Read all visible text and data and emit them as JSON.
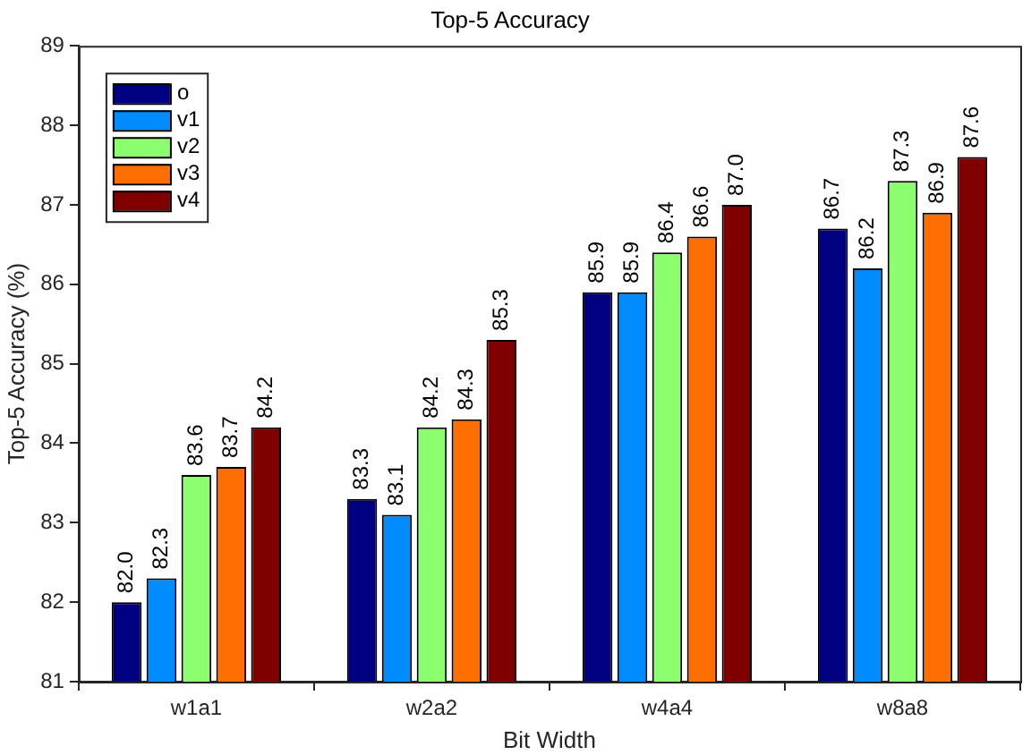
{
  "chart_data": {
    "type": "bar",
    "title": "Top-5 Accuracy",
    "xlabel": "Bit Width",
    "ylabel": "Top-5 Accuracy (%)",
    "categories": [
      "w1a1",
      "w2a2",
      "w4a4",
      "w8a8"
    ],
    "series": [
      {
        "name": "o",
        "color": "#000080",
        "values": [
          82.0,
          83.3,
          85.9,
          86.7
        ],
        "value_labels": [
          "82.0",
          "83.3",
          "85.9",
          "86.7"
        ]
      },
      {
        "name": "v1",
        "color": "#008cff",
        "values": [
          82.3,
          83.1,
          85.9,
          86.2
        ],
        "value_labels": [
          "82.3",
          "83.1",
          "85.9",
          "86.2"
        ]
      },
      {
        "name": "v2",
        "color": "#8cff6e",
        "values": [
          83.6,
          84.2,
          86.4,
          87.3
        ],
        "value_labels": [
          "83.6",
          "84.2",
          "86.4",
          "87.3"
        ]
      },
      {
        "name": "v3",
        "color": "#ff6e00",
        "values": [
          83.7,
          84.3,
          86.6,
          86.9
        ],
        "value_labels": [
          "83.7",
          "84.3",
          "86.6",
          "86.9"
        ]
      },
      {
        "name": "v4",
        "color": "#800000",
        "values": [
          84.2,
          85.3,
          87.0,
          87.6
        ],
        "value_labels": [
          "84.2",
          "85.3",
          "87.0",
          "87.6"
        ]
      }
    ],
    "ylim": [
      81,
      89
    ],
    "yticks": [
      81,
      82,
      83,
      84,
      85,
      86,
      87,
      88,
      89
    ],
    "grid": false,
    "legend": "top left"
  }
}
